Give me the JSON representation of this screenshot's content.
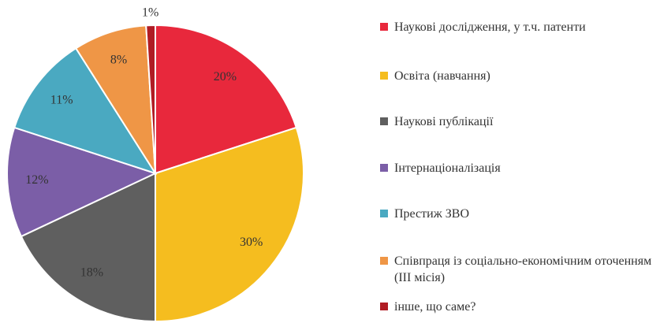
{
  "chart_data": {
    "type": "pie",
    "categories": [
      "Наукові дослідження, у т.ч. патенти",
      "Освіта (навчання)",
      "Наукові публікації",
      "Інтернаціоналізація",
      "Престиж ЗВО",
      "Співпраця із соціально-економічним оточенням (ІІІ місія)",
      "інше, що саме?"
    ],
    "values": [
      20,
      30,
      18,
      12,
      11,
      8,
      1
    ],
    "value_labels": [
      "20%",
      "30%",
      "18%",
      "12%",
      "11%",
      "8%",
      "1%"
    ],
    "colors": [
      "#e8283c",
      "#f5bd1f",
      "#5f5f5f",
      "#7b5ea7",
      "#4aa9c1",
      "#ef9646",
      "#b01c24"
    ]
  }
}
